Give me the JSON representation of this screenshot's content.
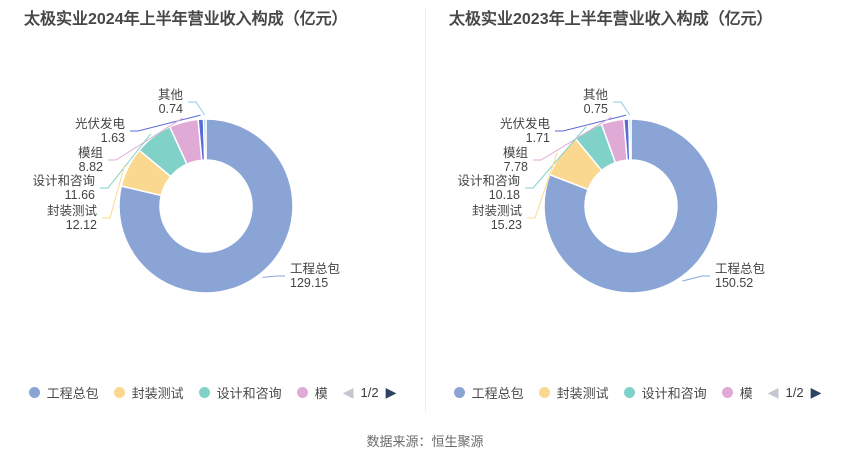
{
  "chart_data": [
    {
      "type": "pie",
      "variant": "donut",
      "title": "太极实业2024年上半年营业收入构成（亿元）",
      "unit": "亿元",
      "categories": [
        "工程总包",
        "封装测试",
        "设计和咨询",
        "模组",
        "光伏发电",
        "其他"
      ],
      "values": [
        129.15,
        12.12,
        11.66,
        8.82,
        1.63,
        0.74
      ],
      "colors": [
        "#8aa4d6",
        "#fbd88f",
        "#80d2c8",
        "#dfaad6",
        "#5a6bd8",
        "#8fcbeb"
      ],
      "legend": {
        "position": "bottom",
        "visible_items": [
          "工程总包",
          "封装测试",
          "设计和咨询",
          "模"
        ],
        "page": "1/2"
      }
    },
    {
      "type": "pie",
      "variant": "donut",
      "title": "太极实业2023年上半年营业收入构成（亿元）",
      "unit": "亿元",
      "categories": [
        "工程总包",
        "封装测试",
        "设计和咨询",
        "模组",
        "光伏发电",
        "其他"
      ],
      "values": [
        150.52,
        15.23,
        10.18,
        7.78,
        1.71,
        0.75
      ],
      "colors": [
        "#8aa4d6",
        "#fbd88f",
        "#80d2c8",
        "#dfaad6",
        "#5a6bd8",
        "#8fcbeb"
      ],
      "legend": {
        "position": "bottom",
        "visible_items": [
          "工程总包",
          "封装测试",
          "设计和咨询",
          "模"
        ],
        "page": "1/2"
      }
    }
  ],
  "legend_nav": {
    "prev": "◀",
    "next": "▶"
  },
  "footer": {
    "source": "数据来源：恒生聚源"
  }
}
